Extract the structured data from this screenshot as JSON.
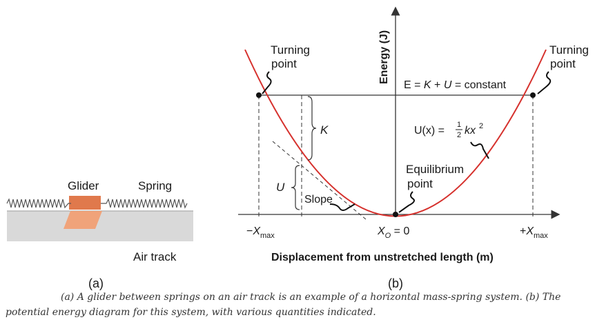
{
  "panel_a": {
    "label": "(a)",
    "glider_label": "Glider",
    "spring_label": "Spring",
    "track_label": "Air track",
    "colors": {
      "glider": "#e8835a",
      "track": "#d9d9d9"
    }
  },
  "panel_b": {
    "label": "(b)",
    "y_axis_label": "Energy (J)",
    "x_axis_label": "Displacement from unstretched length (m)",
    "turning_point_left": [
      "Turning",
      "point"
    ],
    "turning_point_right": [
      "Turning",
      "point"
    ],
    "energy_line": {
      "prefix": "E = ",
      "k": "K",
      "plus": " + ",
      "u": "U",
      "suffix": " = constant"
    },
    "potential": {
      "lhs": "U(x) = ",
      "num": "1",
      "den": "2",
      "rhs_k": "kx",
      "rhs_exp": "2"
    },
    "k_label": "K",
    "u_label": "U",
    "slope_label": "Slope",
    "equilibrium": [
      "Equilibrium",
      "point"
    ],
    "ticks": {
      "left": {
        "sign": "−",
        "base": "X",
        "sub": "max"
      },
      "center": {
        "base": "X",
        "sub": "O",
        "rest": " = 0"
      },
      "right": {
        "sign": "+",
        "base": "X",
        "sub": "max"
      }
    },
    "colors": {
      "curve": "#d6312d",
      "axis": "#333333"
    }
  },
  "caption": {
    "line1": "(a) A glider between springs on an air track is an example of a horizontal mass-spring system. (b) The",
    "line2": "potential energy diagram for this system, with various quantities indicated."
  }
}
